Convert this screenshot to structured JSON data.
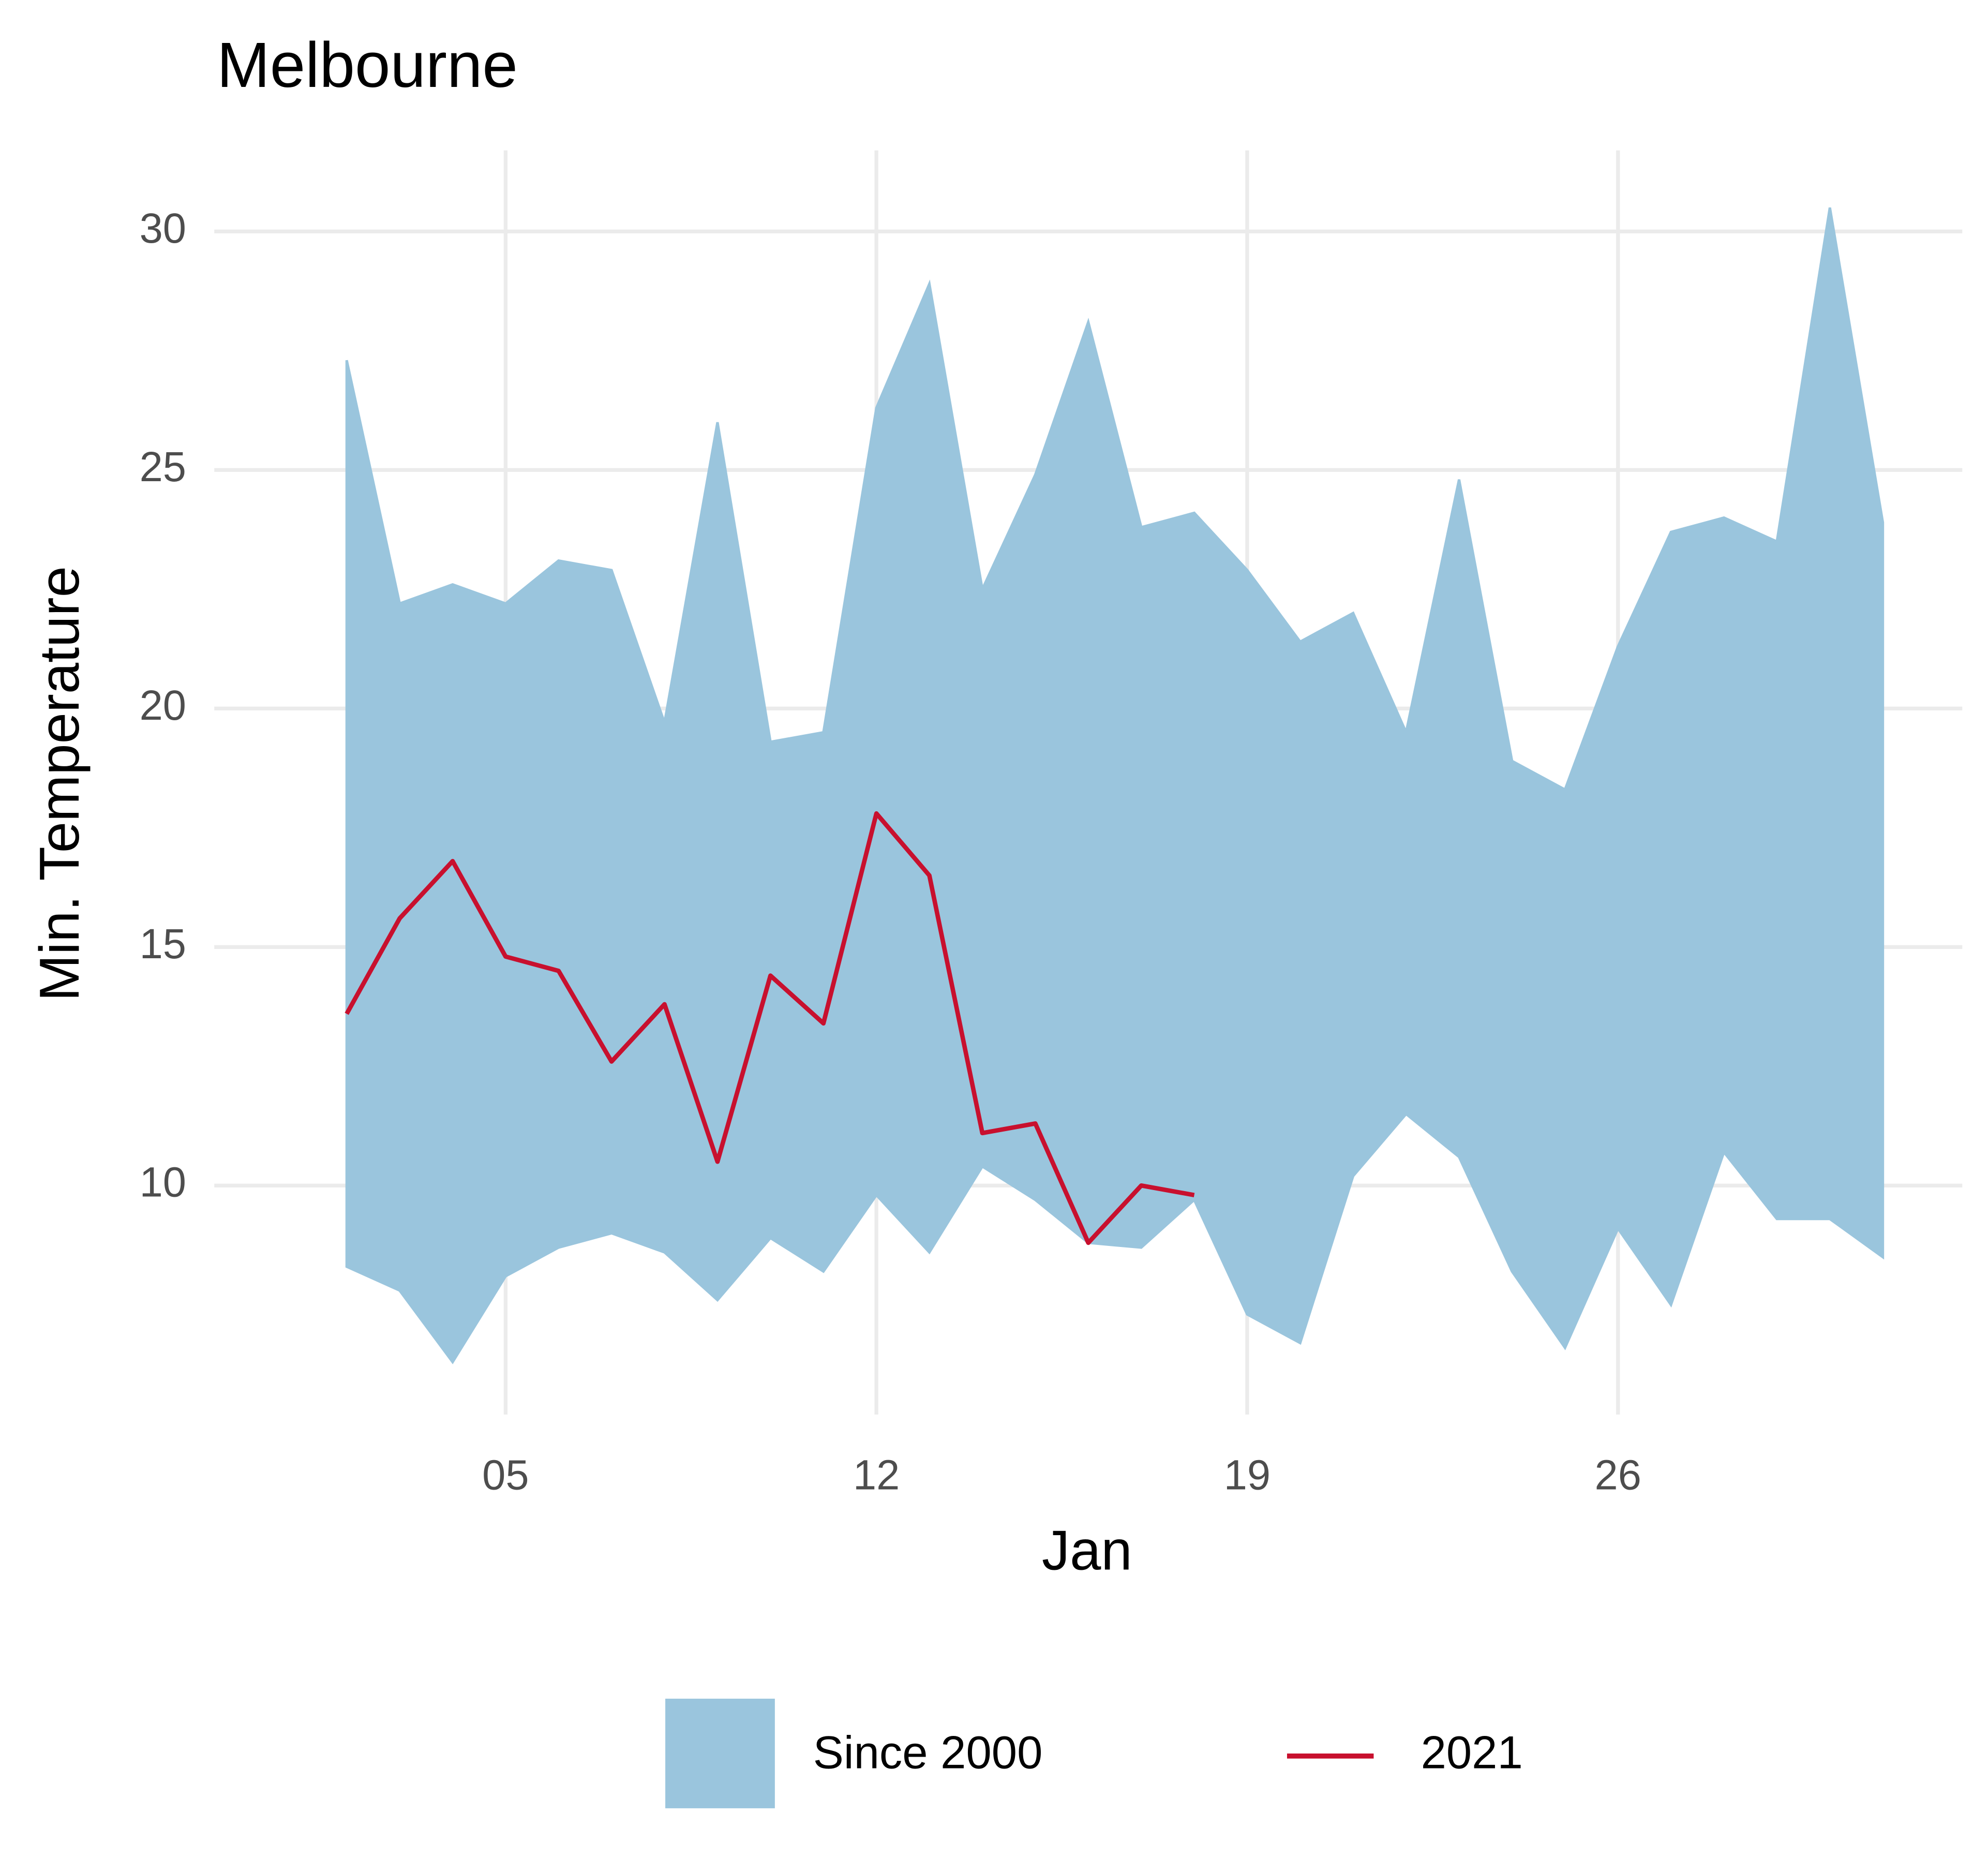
{
  "chart_data": {
    "type": "line",
    "title": "Melbourne",
    "x_label": "Jan",
    "y_label": "Min. Temperature",
    "x": [
      2,
      3,
      4,
      5,
      6,
      7,
      8,
      9,
      10,
      11,
      12,
      13,
      14,
      15,
      16,
      17,
      18,
      19,
      20,
      21,
      22,
      23,
      24,
      25,
      26,
      27,
      28,
      29,
      30,
      31
    ],
    "xlim": [
      -0.5,
      32.5
    ],
    "xticks": [
      {
        "value": 5,
        "label": "05"
      },
      12,
      19,
      26
    ],
    "ylim": [
      5.2,
      31.7
    ],
    "yticks": [
      10,
      15,
      20,
      25,
      30
    ],
    "grid": true,
    "legend": "bottom",
    "series": [
      {
        "name": "Since 2000",
        "color": "#9ac5dd",
        "high": [
          27.3,
          22.2,
          22.6,
          22.2,
          23.1,
          22.9,
          19.7,
          26.0,
          19.3,
          19.5,
          26.3,
          28.9,
          22.5,
          24.9,
          28.1,
          23.8,
          24.1,
          22.9,
          21.4,
          22.0,
          19.5,
          24.8,
          18.9,
          18.3,
          21.3,
          23.7,
          24.0,
          23.5,
          30.5,
          23.9
        ],
        "low": [
          8.3,
          7.8,
          6.3,
          8.1,
          8.7,
          9.0,
          8.6,
          7.6,
          8.9,
          8.2,
          9.8,
          8.6,
          10.4,
          9.7,
          8.8,
          8.7,
          9.7,
          7.3,
          6.7,
          10.2,
          11.5,
          10.6,
          8.2,
          6.6,
          9.1,
          7.5,
          10.7,
          9.3,
          9.3,
          8.5
        ]
      },
      {
        "name": "2021",
        "color": "#c8102e",
        "values": [
          13.6,
          15.6,
          16.8,
          14.8,
          14.5,
          12.6,
          13.8,
          10.5,
          14.4,
          13.4,
          17.8,
          16.5,
          11.1,
          11.3,
          8.8,
          10.0,
          9.8,
          null,
          null,
          null,
          null,
          null,
          null,
          null,
          null,
          null,
          null,
          null,
          null,
          null
        ]
      }
    ]
  }
}
